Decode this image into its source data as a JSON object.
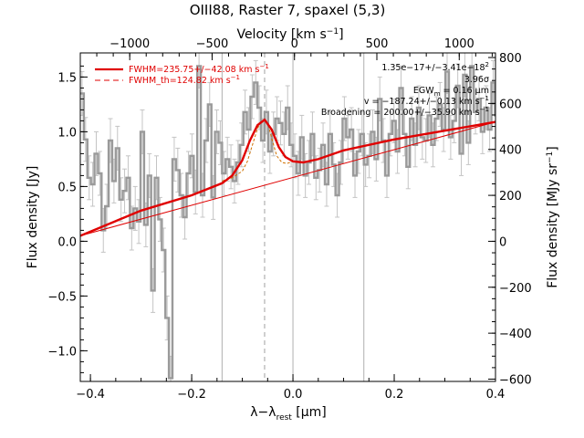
{
  "chart_data": {
    "type": "line",
    "title": "OIII88, Raster 7, spaxel (5,3)",
    "xlabel": "λ−λ",
    "xlabel_sub": "rest",
    "xlabel_unit": " [μm]",
    "ylabel": "Flux density [Jy]",
    "x2label": "Velocity [km s",
    "x2label_sup": "−1",
    "x2label_end": "]",
    "y2label": "Flux density [MJy sr",
    "y2label_sup": "−1",
    "y2label_end": "]",
    "xlim": [
      -0.42,
      0.4
    ],
    "ylim": [
      -1.28,
      1.72
    ],
    "x2lim": [
      -1300,
      1220
    ],
    "y2lim": [
      -610,
      820
    ],
    "x_ticks": [
      -0.4,
      -0.2,
      0.0,
      0.2,
      0.4
    ],
    "x_tick_labels": [
      "−0.4",
      "−0.2",
      "0.0",
      "0.2",
      "0.4"
    ],
    "y_ticks": [
      -1.0,
      -0.5,
      0.0,
      0.5,
      1.0,
      1.5
    ],
    "y_tick_labels": [
      "−1.0",
      "−0.5",
      "0.0",
      "0.5",
      "1.0",
      "1.5"
    ],
    "x2_ticks": [
      -1000,
      -500,
      0,
      500,
      1000
    ],
    "x2_tick_labels": [
      "−1000",
      "−500",
      "0",
      "500",
      "1000"
    ],
    "y2_ticks": [
      -600,
      -400,
      -200,
      0,
      200,
      400,
      600,
      800
    ],
    "y2_tick_labels": [
      "−600",
      "−400",
      "−200",
      "0",
      "200",
      "400",
      "600",
      "800"
    ],
    "vertical_lines": [
      -0.14,
      0.0,
      0.14
    ],
    "line_center": -0.056,
    "legend": {
      "placement": "top-left",
      "entries": [
        {
          "label": "FWHM=235.75+/−42.08 km s",
          "sup": "−1",
          "style": "solid",
          "color": "#e00000"
        },
        {
          "label": "FWHM_th=124.82 km s",
          "sup": "−1",
          "style": "dashed",
          "color": "#e00000"
        }
      ]
    },
    "annotations": [
      {
        "text": "1.35e−17+/−3.41e−18",
        "sup": "2"
      },
      {
        "text": "3.96σ"
      },
      {
        "text": "EGW",
        "sub": "m",
        "rest": " = 0.16 μm"
      },
      {
        "text": "v = −187.24+/−0.13 km s",
        "sup": "−1"
      },
      {
        "text": "Broadening = 200.00+/−35.90 km s",
        "sup": "−1"
      }
    ],
    "series": [
      {
        "kind": "observed spectrum",
        "style": "steps",
        "color": "#9a9a9a",
        "x": [
          -0.42,
          -0.413,
          -0.406,
          -0.399,
          -0.392,
          -0.385,
          -0.378,
          -0.371,
          -0.364,
          -0.357,
          -0.35,
          -0.343,
          -0.336,
          -0.329,
          -0.322,
          -0.315,
          -0.308,
          -0.301,
          -0.294,
          -0.287,
          -0.28,
          -0.273,
          -0.266,
          -0.259,
          -0.252,
          -0.245,
          -0.238,
          -0.231,
          -0.224,
          -0.217,
          -0.21,
          -0.203,
          -0.196,
          -0.189,
          -0.182,
          -0.175,
          -0.168,
          -0.161,
          -0.154,
          -0.147,
          -0.14,
          -0.133,
          -0.126,
          -0.119,
          -0.112,
          -0.105,
          -0.098,
          -0.091,
          -0.084,
          -0.077,
          -0.07,
          -0.063,
          -0.056,
          -0.049,
          -0.042,
          -0.035,
          -0.028,
          -0.021,
          -0.014,
          -0.007,
          0.0,
          0.007,
          0.014,
          0.021,
          0.028,
          0.035,
          0.042,
          0.049,
          0.056,
          0.063,
          0.07,
          0.077,
          0.084,
          0.091,
          0.098,
          0.105,
          0.112,
          0.119,
          0.126,
          0.133,
          0.14,
          0.147,
          0.154,
          0.161,
          0.168,
          0.175,
          0.182,
          0.189,
          0.196,
          0.203,
          0.21,
          0.217,
          0.224,
          0.231,
          0.238,
          0.245,
          0.252,
          0.259,
          0.266,
          0.273,
          0.28,
          0.287,
          0.294,
          0.301,
          0.308,
          0.315,
          0.322,
          0.329,
          0.336,
          0.343,
          0.35,
          0.357,
          0.364,
          0.371,
          0.378,
          0.385,
          0.392,
          0.399
        ],
        "y": [
          1.35,
          0.93,
          0.58,
          0.52,
          0.8,
          0.62,
          0.1,
          0.32,
          0.92,
          0.55,
          0.85,
          0.38,
          0.46,
          0.58,
          0.12,
          0.3,
          0.18,
          1.0,
          0.15,
          0.6,
          -0.45,
          0.58,
          0.2,
          -0.08,
          -0.7,
          -1.25,
          0.75,
          0.65,
          0.42,
          0.22,
          0.62,
          0.78,
          0.45,
          1.6,
          0.42,
          0.92,
          1.25,
          0.4,
          1.0,
          0.9,
          0.62,
          0.75,
          0.68,
          0.55,
          0.72,
          0.88,
          1.18,
          1.02,
          1.32,
          1.45,
          1.22,
          0.92,
          1.18,
          0.82,
          0.98,
          1.12,
          1.08,
          0.98,
          1.22,
          0.88,
          0.78,
          0.62,
          0.95,
          0.6,
          0.72,
          0.98,
          0.58,
          0.65,
          0.88,
          0.52,
          0.98,
          0.7,
          0.42,
          0.72,
          1.12,
          0.95,
          1.02,
          0.6,
          0.82,
          0.98,
          0.7,
          0.78,
          1.0,
          0.75,
          1.3,
          0.92,
          0.6,
          0.98,
          1.1,
          0.82,
          1.4,
          0.98,
          0.68,
          1.12,
          0.88,
          1.22,
          0.95,
          0.92,
          1.15,
          0.88,
          1.12,
          1.25,
          1.02,
          1.55,
          0.95,
          1.1,
          1.42,
          0.8,
          1.52,
          0.9,
          1.6,
          1.18,
          1.3,
          1.0,
          1.22,
          1.02,
          1.45,
          1.15
        ],
        "yerr": 0.2
      },
      {
        "kind": "continuum",
        "style": "thin solid",
        "color": "#e00000",
        "x": [
          -0.42,
          0.4
        ],
        "y": [
          0.05,
          1.09
        ]
      },
      {
        "kind": "thermal-width gaussian",
        "style": "thin dashed",
        "color": "#d07000",
        "x": [
          -0.14,
          -0.12,
          -0.1,
          -0.09,
          -0.08,
          -0.07,
          -0.064,
          -0.056,
          -0.048,
          -0.042,
          -0.032,
          -0.022,
          -0.012,
          0.0
        ],
        "y": [
          0.55,
          0.58,
          0.64,
          0.73,
          0.88,
          1.03,
          1.09,
          1.11,
          1.05,
          0.94,
          0.78,
          0.72,
          0.71,
          0.73
        ]
      },
      {
        "kind": "fitted model",
        "style": "thick solid",
        "color": "#e00000",
        "x": [
          -0.42,
          -0.3,
          -0.2,
          -0.14,
          -0.12,
          -0.1,
          -0.085,
          -0.07,
          -0.056,
          -0.042,
          -0.028,
          -0.015,
          0.0,
          0.02,
          0.05,
          0.1,
          0.2,
          0.3,
          0.4
        ],
        "y": [
          0.05,
          0.28,
          0.42,
          0.53,
          0.6,
          0.74,
          0.92,
          1.06,
          1.11,
          1.02,
          0.86,
          0.77,
          0.73,
          0.72,
          0.75,
          0.83,
          0.93,
          1.01,
          1.09
        ]
      }
    ]
  }
}
